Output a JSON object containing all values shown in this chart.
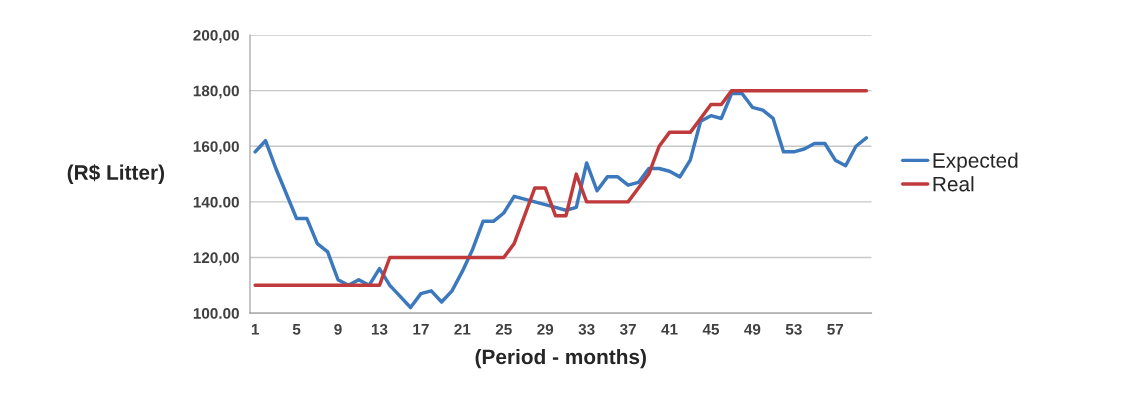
{
  "chart_data": {
    "type": "line",
    "xlabel": "(Period - months)",
    "ylabel": "(R$ Litter)",
    "categories": [
      "1",
      null,
      null,
      null,
      "5",
      null,
      null,
      null,
      "9",
      null,
      null,
      null,
      "13",
      null,
      null,
      null,
      "17",
      null,
      null,
      null,
      "21",
      null,
      null,
      null,
      "25",
      null,
      null,
      null,
      "29",
      null,
      null,
      null,
      "33",
      null,
      null,
      null,
      "37",
      null,
      null,
      null,
      "41",
      null,
      null,
      null,
      "45",
      null,
      null,
      null,
      "49",
      null,
      null,
      null,
      "53",
      null,
      null,
      null,
      "57",
      null,
      null,
      null
    ],
    "series": [
      {
        "name": "Expected",
        "color": "#3b78bd",
        "values": [
          158,
          162,
          152,
          143,
          134,
          134,
          125,
          122,
          112,
          110,
          112,
          110,
          116,
          110,
          106,
          102,
          107,
          108,
          104,
          108,
          115,
          123,
          133,
          133,
          136,
          142,
          141,
          140,
          139,
          138,
          137,
          138,
          154,
          144,
          149,
          149,
          146,
          147,
          152,
          152,
          151,
          149,
          155,
          169,
          171,
          170,
          179,
          179,
          174,
          173,
          170,
          158,
          158,
          159,
          161,
          161,
          155,
          153,
          160,
          163
        ]
      },
      {
        "name": "Real",
        "color": "#c0393b",
        "values": [
          110,
          110,
          110,
          110,
          110,
          110,
          110,
          110,
          110,
          110,
          110,
          110,
          110,
          120,
          120,
          120,
          120,
          120,
          120,
          120,
          120,
          120,
          120,
          120,
          120,
          125,
          135,
          145,
          145,
          135,
          135,
          150,
          140,
          140,
          140,
          140,
          140,
          145,
          150,
          160,
          165,
          165,
          165,
          170,
          175,
          175,
          180,
          180,
          180,
          180,
          180,
          180,
          180,
          180,
          180,
          180,
          180,
          180,
          180,
          180
        ]
      }
    ],
    "ylim": [
      100,
      200
    ],
    "yticks": [
      {
        "value": 100,
        "label": "100.00"
      },
      {
        "value": 120,
        "label": "120,00"
      },
      {
        "value": 140,
        "label": "140.00"
      },
      {
        "value": 160,
        "label": "160,00"
      },
      {
        "value": 180,
        "label": "180,00"
      },
      {
        "value": 200,
        "label": "200,00"
      }
    ],
    "grid": "y",
    "legend": "right",
    "marker": "none",
    "line_style": "solid"
  }
}
